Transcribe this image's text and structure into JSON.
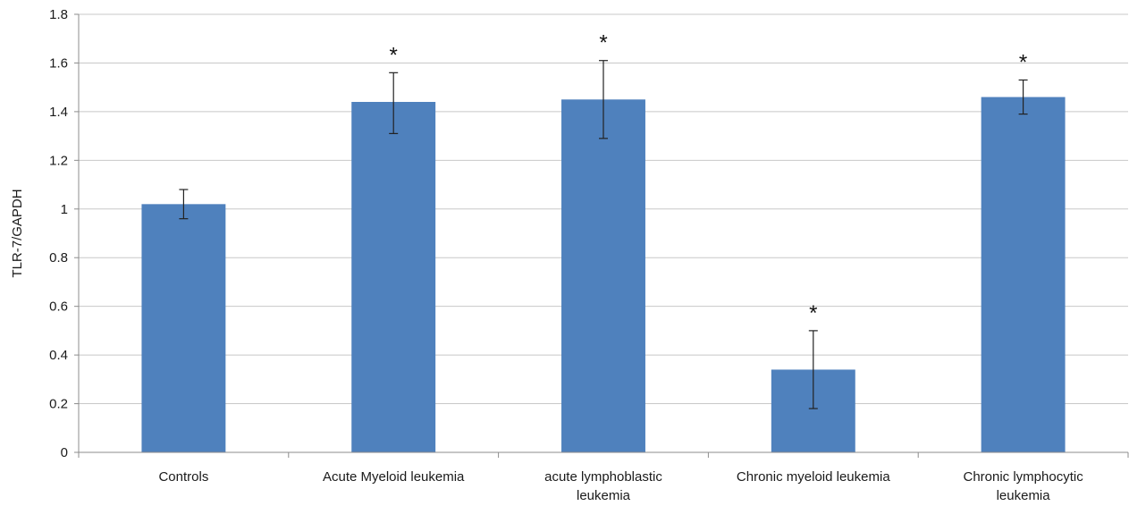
{
  "chart_data": {
    "type": "bar",
    "title": "",
    "xlabel": "",
    "ylabel": "TLR-7/GAPDH",
    "ylim": [
      0,
      1.8
    ],
    "yticks": [
      0,
      0.2,
      0.4,
      0.6,
      0.8,
      1,
      1.2,
      1.4,
      1.6,
      1.8
    ],
    "ytick_labels": [
      "0",
      "0.2",
      "0.4",
      "0.6",
      "0.8",
      "1",
      "1.2",
      "1.4",
      "1.6",
      "1.8"
    ],
    "grid": true,
    "bar_color": "#4f81bd",
    "categories": [
      [
        "Controls"
      ],
      [
        "Acute Myeloid leukemia"
      ],
      [
        "acute lymphoblastic",
        "leukemia"
      ],
      [
        "Chronic myeloid leukemia"
      ],
      [
        "Chronic lymphocytic",
        "leukemia"
      ]
    ],
    "values": [
      1.02,
      1.44,
      1.45,
      0.34,
      1.46
    ],
    "error_low": [
      0.96,
      1.31,
      1.29,
      0.18,
      1.39
    ],
    "error_high": [
      1.08,
      1.56,
      1.61,
      0.5,
      1.53
    ],
    "significance": [
      "",
      "*",
      "*",
      "*",
      "*"
    ]
  }
}
